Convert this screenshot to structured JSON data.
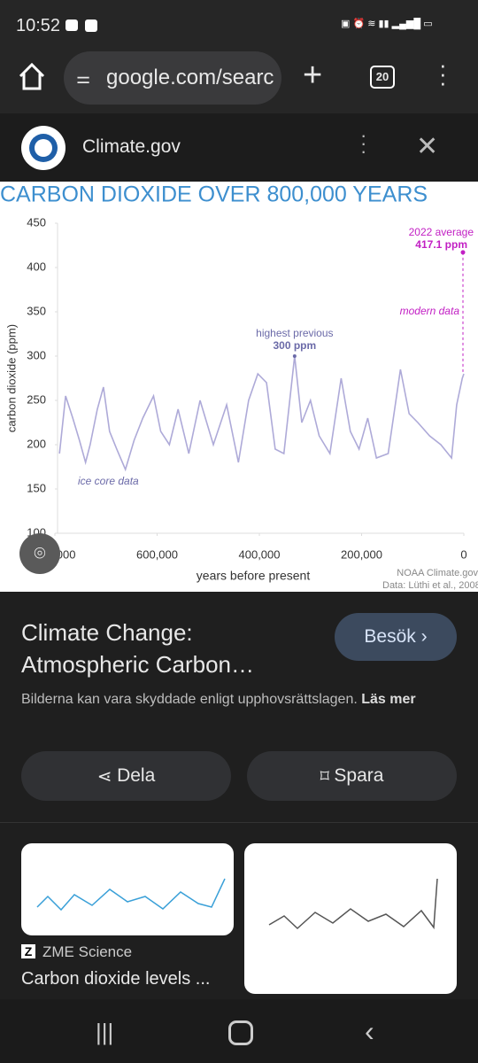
{
  "status": {
    "time": "10:52"
  },
  "browser": {
    "url": "google.com/searc",
    "tabs": "20"
  },
  "source_bar": {
    "name": "Climate.gov"
  },
  "chart_data": {
    "type": "line",
    "title": "CARBON DIOXIDE OVER 800,000 YEARS",
    "x_label": "years before present",
    "y_label": "carbon dioxide (ppm)",
    "x": [
      791000,
      779000,
      765000,
      752000,
      740000,
      731000,
      717000,
      705000,
      693000,
      679000,
      662000,
      645000,
      628000,
      607000,
      593000,
      576000,
      559000,
      538000,
      516000,
      490000,
      464000,
      441000,
      421000,
      403000,
      386000,
      369000,
      352000,
      331000,
      317000,
      300000,
      283000,
      262000,
      240000,
      222000,
      205000,
      188000,
      171000,
      148000,
      124000,
      107000,
      90000,
      67000,
      45000,
      24000,
      14000,
      3000,
      0
    ],
    "values": [
      190,
      255,
      230,
      205,
      180,
      200,
      240,
      265,
      215,
      195,
      172,
      205,
      230,
      255,
      215,
      200,
      240,
      190,
      250,
      200,
      245,
      180,
      250,
      280,
      270,
      195,
      190,
      300,
      225,
      250,
      210,
      190,
      275,
      215,
      195,
      230,
      185,
      190,
      285,
      235,
      225,
      210,
      200,
      185,
      245,
      275,
      280
    ],
    "color": "#aeaad8",
    "xlim": [
      800000,
      0
    ],
    "ylim": [
      100,
      450
    ],
    "xticks": [
      {
        "value": 800000,
        "label": "800,000"
      },
      {
        "value": 600000,
        "label": "600,000"
      },
      {
        "value": 400000,
        "label": "400,000"
      },
      {
        "value": 200000,
        "label": "200,000"
      },
      0
    ],
    "yticks": [
      100,
      150,
      200,
      250,
      300,
      350,
      400,
      450
    ],
    "modern": {
      "x": 0,
      "value": 417.1,
      "title": "2022 average",
      "value_label": "417.1 ppm",
      "note": "modern data",
      "color": "#c21fc4"
    },
    "highest": {
      "x": 331000,
      "value": 300,
      "title": "highest previous",
      "value_label": "300 ppm"
    },
    "ice_label": "ice core data",
    "credits": [
      "NOAA Climate.gov",
      "Data: Lüthi et al., 2008"
    ]
  },
  "result": {
    "title_lines": [
      "Climate Change:",
      "Atmospheric Carbon…"
    ],
    "visit": "Besök",
    "notice": "Bilderna kan vara skyddade enligt upphovsrättslagen.",
    "notice_link": "Läs mer"
  },
  "actions": {
    "share": "Dela",
    "save": "Spara"
  },
  "related": [
    {
      "source": "ZME Science",
      "title": "Carbon dioxide levels ..."
    }
  ]
}
